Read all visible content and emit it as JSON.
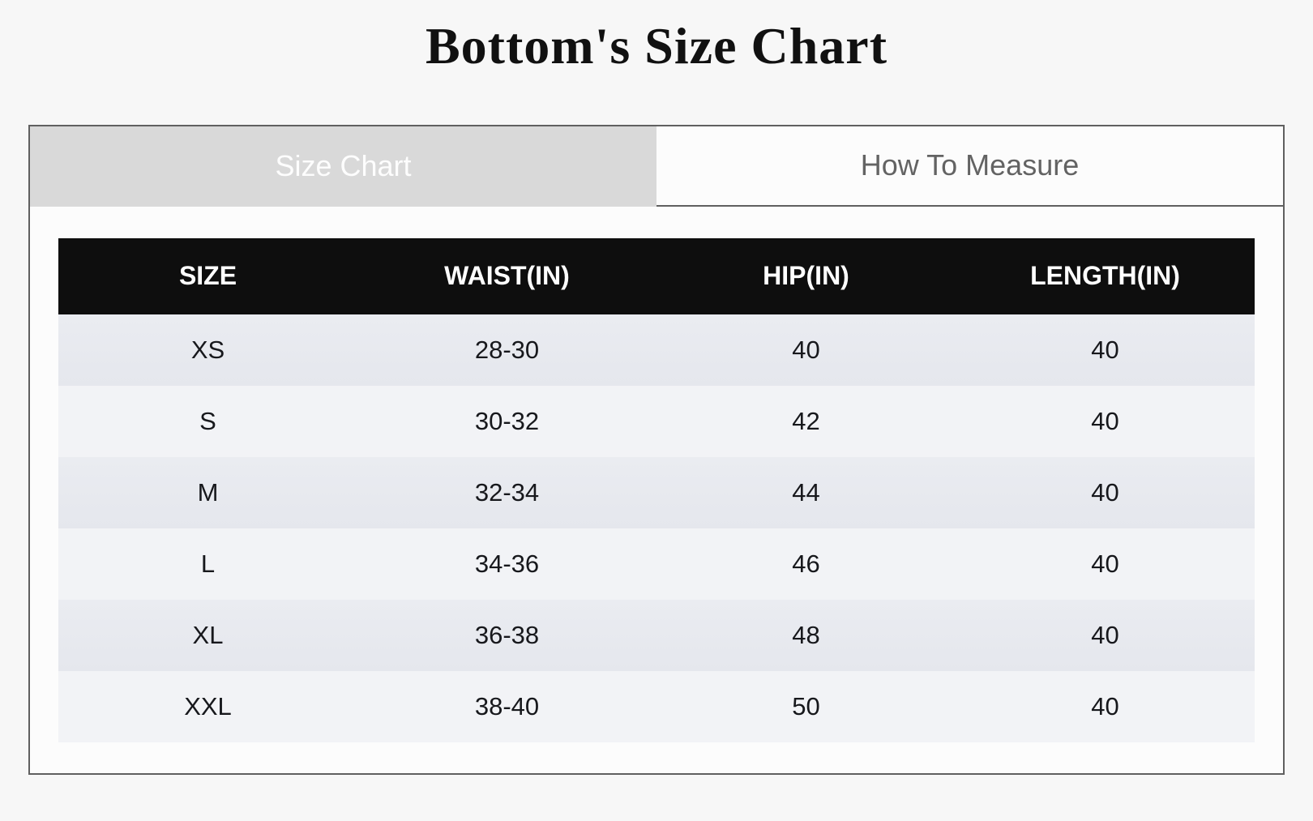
{
  "page": {
    "title": "Bottom's Size Chart"
  },
  "tabs": [
    {
      "label": "Size Chart",
      "active": true
    },
    {
      "label": "How To Measure",
      "active": false
    }
  ],
  "size_table": {
    "columns": [
      "SIZE",
      "WAIST(IN)",
      "HIP(IN)",
      "LENGTH(IN)"
    ],
    "rows": [
      [
        "XS",
        "28-30",
        "40",
        "40"
      ],
      [
        "S",
        "30-32",
        "42",
        "40"
      ],
      [
        "M",
        "32-34",
        "44",
        "40"
      ],
      [
        "L",
        "34-36",
        "46",
        "40"
      ],
      [
        "XL",
        "36-38",
        "48",
        "40"
      ],
      [
        "XXL",
        "38-40",
        "50",
        "40"
      ]
    ]
  },
  "colors": {
    "page-bg": "#f7f7f7",
    "panel-border": "#606060",
    "tab-active-bg": "#d9d9d9",
    "tab-active-text": "#fdfdfd",
    "tab-inactive-text": "#636363",
    "table-header-bg": "#0e0e0e",
    "table-header-text": "#ffffff",
    "row-odd-bg": "#e5e7ed",
    "row-even-bg": "#f2f3f6"
  }
}
